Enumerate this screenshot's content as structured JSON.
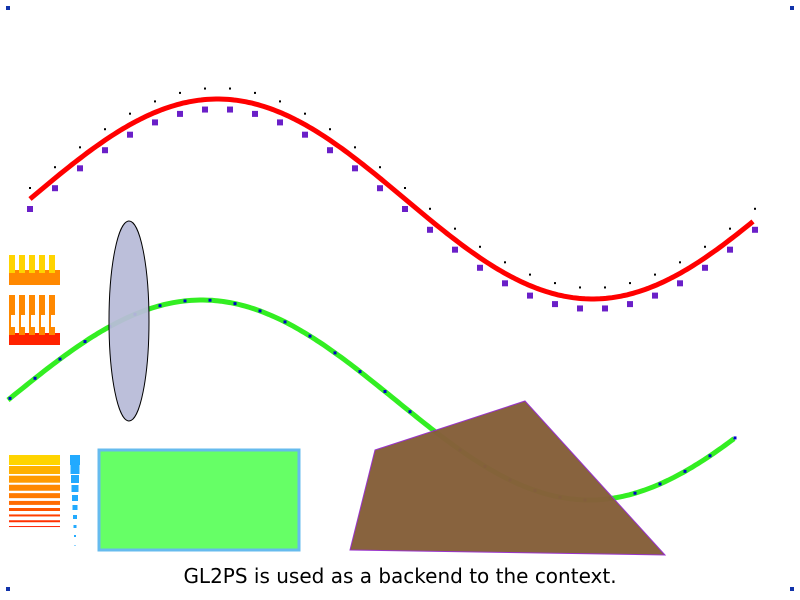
{
  "caption": "GL2PS is used as a backend to the context.",
  "colors": {
    "background": "#ffffff",
    "red_curve": "#ff0000",
    "purple_markers": "#6a1fc8",
    "black_dots": "#000000",
    "green_curve": "#33ee22",
    "blue_points": "#0000cc",
    "ellipse_fill": "#b8bcd8",
    "rect_fill": "#66ff66",
    "rect_border": "#66bbee",
    "polygon_fill": "#86603a",
    "polygon_border": "#9933cc",
    "corner_marker": "#1133aa",
    "stripe_gradient": [
      "#ffd400",
      "#ff8800",
      "#ff2200"
    ],
    "dot_column": "#22aaff"
  }
}
